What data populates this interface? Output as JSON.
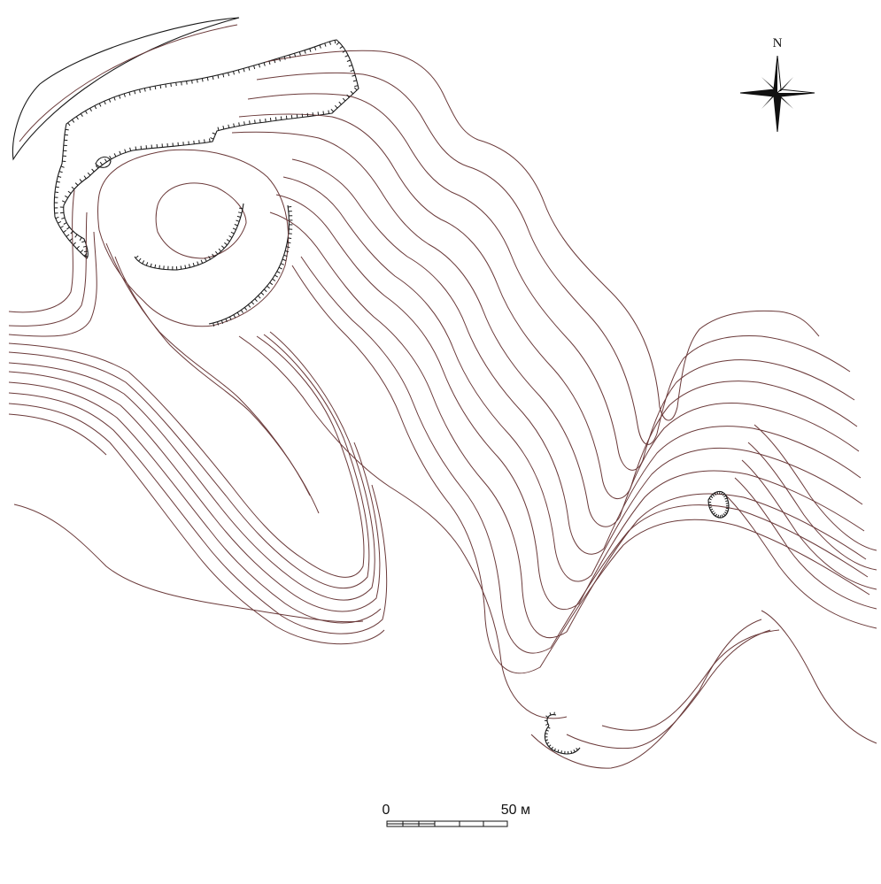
{
  "compass": {
    "north_label": "N"
  },
  "scale_bar": {
    "start_label": "0",
    "end_label": "50 м",
    "divisions": 5
  }
}
